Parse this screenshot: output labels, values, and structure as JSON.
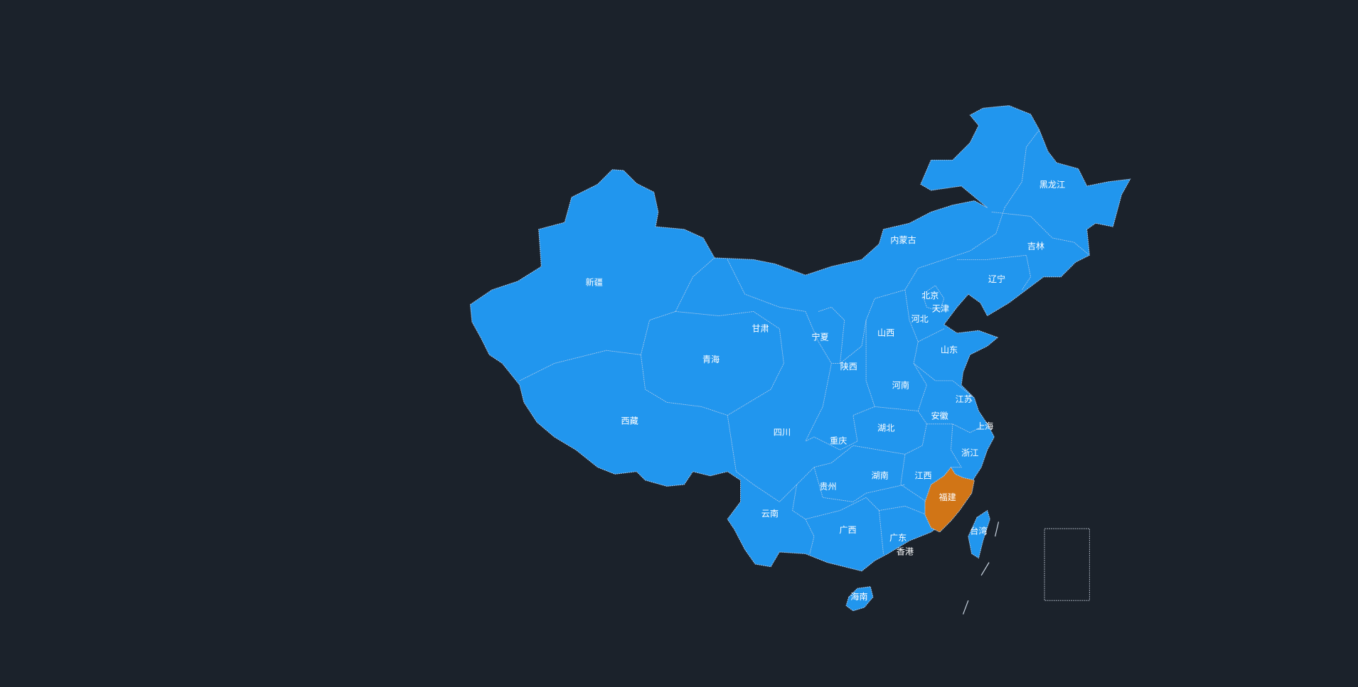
{
  "map": {
    "colors": {
      "background": "#1b222b",
      "region": "#2196ee",
      "selected": "#d17516",
      "border": "#a9c9ea"
    },
    "selected_region": "福建",
    "regions": [
      "新疆",
      "西藏",
      "青海",
      "甘肃",
      "内蒙古",
      "黑龙江",
      "吉林",
      "辽宁",
      "宁夏",
      "陕西",
      "山西",
      "河北",
      "北京",
      "天津",
      "山东",
      "河南",
      "江苏",
      "安徽",
      "上海",
      "湖北",
      "浙江",
      "四川",
      "重庆",
      "湖南",
      "江西",
      "福建",
      "贵州",
      "云南",
      "广西",
      "广东",
      "香港",
      "台湾",
      "海南"
    ]
  }
}
